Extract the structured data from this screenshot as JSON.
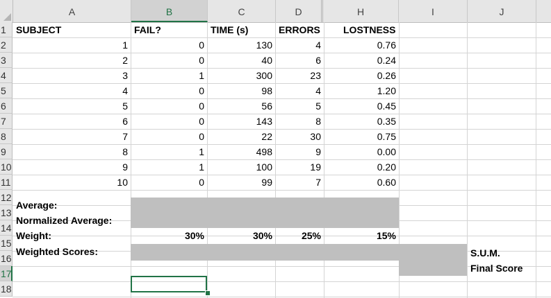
{
  "columns": [
    "A",
    "B",
    "C",
    "D",
    "H",
    "I",
    "J"
  ],
  "active_column": "B",
  "rows": [
    "1",
    "2",
    "3",
    "4",
    "5",
    "6",
    "7",
    "8",
    "9",
    "10",
    "11",
    "12",
    "13",
    "14",
    "15",
    "16",
    "17",
    "18"
  ],
  "active_row": "17",
  "headers": {
    "subject": "SUBJECT",
    "fail": "FAIL?",
    "time": "TIME (s)",
    "errors": "ERRORS",
    "lostness": "LOSTNESS"
  },
  "data": [
    {
      "subject": "1",
      "fail": "0",
      "time": "130",
      "errors": "4",
      "lostness": "0.76"
    },
    {
      "subject": "2",
      "fail": "0",
      "time": "40",
      "errors": "6",
      "lostness": "0.24"
    },
    {
      "subject": "3",
      "fail": "1",
      "time": "300",
      "errors": "23",
      "lostness": "0.26"
    },
    {
      "subject": "4",
      "fail": "0",
      "time": "98",
      "errors": "4",
      "lostness": "1.20"
    },
    {
      "subject": "5",
      "fail": "0",
      "time": "56",
      "errors": "5",
      "lostness": "0.45"
    },
    {
      "subject": "6",
      "fail": "0",
      "time": "143",
      "errors": "8",
      "lostness": "0.35"
    },
    {
      "subject": "7",
      "fail": "0",
      "time": "22",
      "errors": "30",
      "lostness": "0.75"
    },
    {
      "subject": "8",
      "fail": "1",
      "time": "498",
      "errors": "9",
      "lostness": "0.00"
    },
    {
      "subject": "9",
      "fail": "1",
      "time": "100",
      "errors": "19",
      "lostness": "0.20"
    },
    {
      "subject": "10",
      "fail": "0",
      "time": "99",
      "errors": "7",
      "lostness": "0.60"
    }
  ],
  "labels": {
    "average": "Average:",
    "normalized_average": "Normalized Average:",
    "weight": "Weight:",
    "weighted_scores": "Weighted Scores:"
  },
  "weights": {
    "fail": "30%",
    "time": "30%",
    "errors": "25%",
    "lostness": "15%"
  },
  "sum_label": "S.U.M.",
  "final_score_label": "Final Score",
  "colors": {
    "header_bg": "#e6e6e6",
    "active_green": "#217346",
    "fill_gray": "#bfbfbf",
    "grid": "#d4d4d4"
  }
}
